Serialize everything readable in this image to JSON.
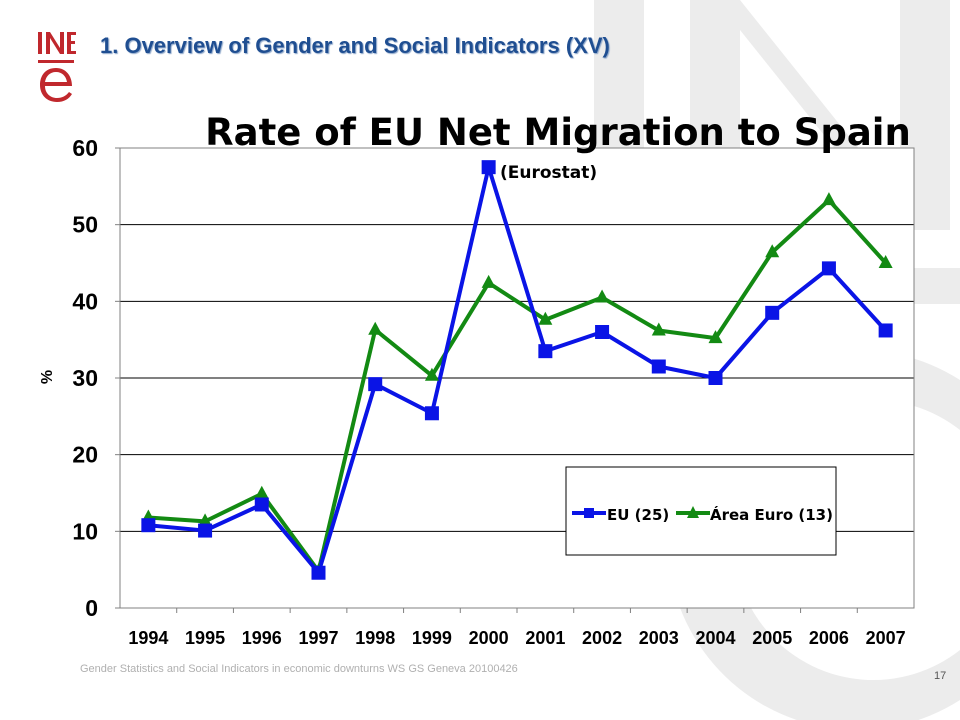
{
  "slide": {
    "title": "1. Overview of Gender and Social Indicators (XV)",
    "footer": "Gender Statistics and Social Indicators in economic downturns WS GS Geneva 20100426",
    "page_number": "17",
    "logo_text": "INE"
  },
  "chart_data": {
    "type": "line",
    "title": "Rate of EU Net Migration to Spain",
    "subtitle": "(Eurostat)",
    "xlabel": "",
    "ylabel": "%",
    "categories": [
      "1994",
      "1995",
      "1996",
      "1997",
      "1998",
      "1999",
      "2000",
      "2001",
      "2002",
      "2003",
      "2004",
      "2005",
      "2006",
      "2007"
    ],
    "ylim": [
      0,
      60
    ],
    "yticks": [
      "0",
      "10",
      "20",
      "30",
      "40",
      "50",
      "60"
    ],
    "grid": true,
    "legend_position": "bottom-right",
    "series": [
      {
        "name": "EU (25)",
        "marker": "square",
        "color": "#0a14e6",
        "values": [
          10.8,
          10.1,
          13.5,
          4.6,
          29.2,
          25.4,
          57.5,
          33.5,
          36.0,
          31.5,
          30.0,
          38.5,
          44.3,
          36.2
        ]
      },
      {
        "name": "Área Euro (13)",
        "marker": "triangle",
        "color": "#138a13",
        "values": [
          11.8,
          11.3,
          14.9,
          4.8,
          36.3,
          30.3,
          42.4,
          37.6,
          40.5,
          36.2,
          35.2,
          46.4,
          53.2,
          45.0
        ]
      }
    ]
  }
}
